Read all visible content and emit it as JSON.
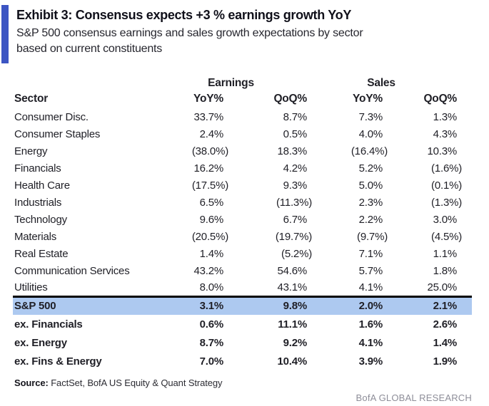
{
  "exhibit": {
    "title": "Exhibit 3: Consensus expects +3 % earnings growth YoY",
    "subtitle_line1": "S&P 500 consensus earnings and sales growth expectations by sector",
    "subtitle_line2": "based on current constituents"
  },
  "table": {
    "group_headers": {
      "earnings": "Earnings",
      "sales": "Sales"
    },
    "columns": [
      "Sector",
      "YoY%",
      "QoQ%",
      "YoY%",
      "QoQ%"
    ],
    "rows": [
      {
        "sector": "Consumer Disc.",
        "values": [
          "33.7%",
          "8.7%",
          "7.3%",
          "1.3%"
        ]
      },
      {
        "sector": "Consumer Staples",
        "values": [
          "2.4%",
          "0.5%",
          "4.0%",
          "4.3%"
        ]
      },
      {
        "sector": "Energy",
        "values": [
          "(38.0%)",
          "18.3%",
          "(16.4%)",
          "10.3%"
        ]
      },
      {
        "sector": "Financials",
        "values": [
          "16.2%",
          "4.2%",
          "5.2%",
          "(1.6%)"
        ]
      },
      {
        "sector": "Health Care",
        "values": [
          "(17.5%)",
          "9.3%",
          "5.0%",
          "(0.1%)"
        ]
      },
      {
        "sector": "Industrials",
        "values": [
          "6.5%",
          "(11.3%)",
          "2.3%",
          "(1.3%)"
        ]
      },
      {
        "sector": "Technology",
        "values": [
          "9.6%",
          "6.7%",
          "2.2%",
          "3.0%"
        ]
      },
      {
        "sector": "Materials",
        "values": [
          "(20.5%)",
          "(19.7%)",
          "(9.7%)",
          "(4.5%)"
        ]
      },
      {
        "sector": "Real Estate",
        "values": [
          "1.4%",
          "(5.2%)",
          "7.1%",
          "1.1%"
        ]
      },
      {
        "sector": "Communication Services",
        "values": [
          "43.2%",
          "54.6%",
          "5.7%",
          "1.8%"
        ]
      },
      {
        "sector": "Utilities",
        "values": [
          "8.0%",
          "43.1%",
          "4.1%",
          "25.0%"
        ]
      }
    ],
    "summary_rows": [
      {
        "sector": "S&P 500",
        "values": [
          "3.1%",
          "9.8%",
          "2.0%",
          "2.1%"
        ],
        "highlight": true
      },
      {
        "sector": "ex. Financials",
        "values": [
          "0.6%",
          "11.1%",
          "1.6%",
          "2.6%"
        ],
        "highlight": false
      },
      {
        "sector": "ex. Energy",
        "values": [
          "8.7%",
          "9.2%",
          "4.1%",
          "1.4%"
        ],
        "highlight": false
      },
      {
        "sector": "ex. Fins & Energy",
        "values": [
          "7.0%",
          "10.4%",
          "3.9%",
          "1.9%"
        ],
        "highlight": false
      }
    ]
  },
  "footer": {
    "source_label": "Source:",
    "source_text": "FactSet, BofA US Equity & Quant Strategy",
    "brand": "BofA GLOBAL RESEARCH"
  },
  "colors": {
    "accent_bar": "#3c55c3",
    "highlight_row": "#adc9f0",
    "rule": "#000000",
    "brand_text": "#8e8e99"
  }
}
